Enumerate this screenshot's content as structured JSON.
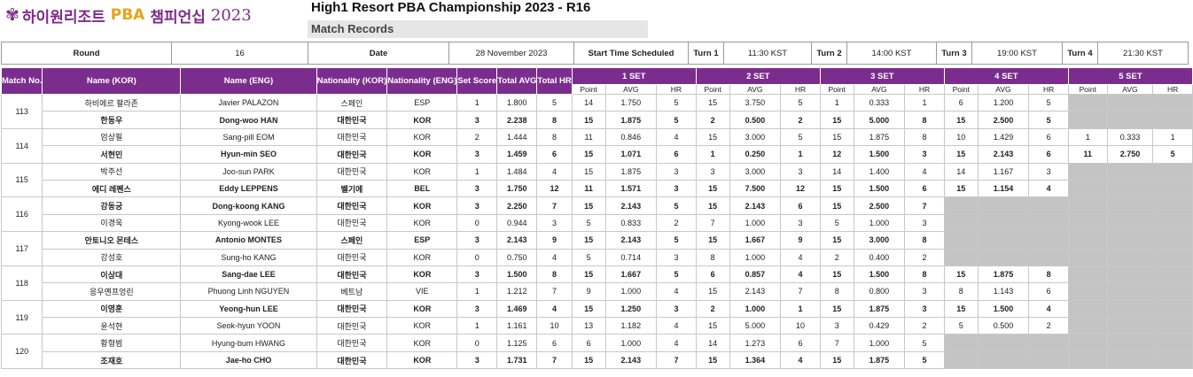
{
  "logo": {
    "symbol": "✾",
    "korean_a": "하이원리조트",
    "pba": "PBA",
    "korean_b": "챔피언십",
    "year": "2023"
  },
  "title": "High1 Resort PBA Championship 2023 - R16",
  "subtitle": "Match Records",
  "info": {
    "round_label": "Round",
    "round": "16",
    "date_label": "Date",
    "date": "28 November 2023",
    "start_label": "Start Time Scheduled",
    "turns": [
      {
        "label": "Turn 1",
        "time": "11:30 KST"
      },
      {
        "label": "Turn 2",
        "time": "14:00 KST"
      },
      {
        "label": "Turn 3",
        "time": "19:00 KST"
      },
      {
        "label": "Turn 4",
        "time": "21:30 KST"
      }
    ]
  },
  "headers": {
    "match": "Match No.",
    "name_kor": "Name (KOR)",
    "name_eng": "Name (ENG)",
    "nat_kor": "Nationality (KOR)",
    "nat_eng": "Nationality (ENG)",
    "set_score": "Set Score",
    "total_avg": "Total AVG",
    "total_hr": "Total HR",
    "sets": [
      "1 SET",
      "2 SET",
      "3 SET",
      "4 SET",
      "5 SET"
    ],
    "point": "Point",
    "avg": "AVG",
    "hr": "HR"
  },
  "colors": {
    "header_bg": "#7b2d8e",
    "empty_set": "#c4c4c4"
  },
  "matches": [
    {
      "no": "113",
      "players": [
        {
          "bold": false,
          "kor": "하비에르 팔라존",
          "eng": "Javier PALAZON",
          "nat_kor": "스페인",
          "nat_eng": "ESP",
          "score": "1",
          "avg": "1.800",
          "hr": "5",
          "sets": [
            [
              "14",
              "1.750",
              "5"
            ],
            [
              "15",
              "3.750",
              "5"
            ],
            [
              "1",
              "0.333",
              "1"
            ],
            [
              "6",
              "1.200",
              "5"
            ],
            null
          ]
        },
        {
          "bold": true,
          "kor": "한동우",
          "eng": "Dong-woo HAN",
          "nat_kor": "대한민국",
          "nat_eng": "KOR",
          "score": "3",
          "avg": "2.238",
          "hr": "8",
          "sets": [
            [
              "15",
              "1.875",
              "5"
            ],
            [
              "2",
              "0.500",
              "2"
            ],
            [
              "15",
              "5.000",
              "8"
            ],
            [
              "15",
              "2.500",
              "5"
            ],
            null
          ]
        }
      ]
    },
    {
      "no": "114",
      "players": [
        {
          "bold": false,
          "kor": "엄상필",
          "eng": "Sang-pill EOM",
          "nat_kor": "대한민국",
          "nat_eng": "KOR",
          "score": "2",
          "avg": "1.444",
          "hr": "8",
          "sets": [
            [
              "11",
              "0.846",
              "4"
            ],
            [
              "15",
              "3.000",
              "5"
            ],
            [
              "15",
              "1.875",
              "8"
            ],
            [
              "10",
              "1.429",
              "6"
            ],
            [
              "1",
              "0.333",
              "1"
            ]
          ]
        },
        {
          "bold": true,
          "kor": "서현민",
          "eng": "Hyun-min SEO",
          "nat_kor": "대한민국",
          "nat_eng": "KOR",
          "score": "3",
          "avg": "1.459",
          "hr": "6",
          "sets": [
            [
              "15",
              "1.071",
              "6"
            ],
            [
              "1",
              "0.250",
              "1"
            ],
            [
              "12",
              "1.500",
              "3"
            ],
            [
              "15",
              "2.143",
              "6"
            ],
            [
              "11",
              "2.750",
              "5"
            ]
          ]
        }
      ]
    },
    {
      "no": "115",
      "players": [
        {
          "bold": false,
          "kor": "박주선",
          "eng": "Joo-sun PARK",
          "nat_kor": "대한민국",
          "nat_eng": "KOR",
          "score": "1",
          "avg": "1.484",
          "hr": "4",
          "sets": [
            [
              "15",
              "1.875",
              "3"
            ],
            [
              "3",
              "3.000",
              "3"
            ],
            [
              "14",
              "1.400",
              "4"
            ],
            [
              "14",
              "1.167",
              "3"
            ],
            null
          ]
        },
        {
          "bold": true,
          "kor": "에디 레펜스",
          "eng": "Eddy LEPPENS",
          "nat_kor": "벨기에",
          "nat_eng": "BEL",
          "score": "3",
          "avg": "1.750",
          "hr": "12",
          "sets": [
            [
              "11",
              "1.571",
              "3"
            ],
            [
              "15",
              "7.500",
              "12"
            ],
            [
              "15",
              "1.500",
              "6"
            ],
            [
              "15",
              "1.154",
              "4"
            ],
            null
          ]
        }
      ]
    },
    {
      "no": "116",
      "players": [
        {
          "bold": true,
          "kor": "강동궁",
          "eng": "Dong-koong KANG",
          "nat_kor": "대한민국",
          "nat_eng": "KOR",
          "score": "3",
          "avg": "2.250",
          "hr": "7",
          "sets": [
            [
              "15",
              "2.143",
              "5"
            ],
            [
              "15",
              "2.143",
              "6"
            ],
            [
              "15",
              "2.500",
              "7"
            ],
            null,
            null
          ]
        },
        {
          "bold": false,
          "kor": "이경욱",
          "eng": "Kyong-wook LEE",
          "nat_kor": "대한민국",
          "nat_eng": "KOR",
          "score": "0",
          "avg": "0.944",
          "hr": "3",
          "sets": [
            [
              "5",
              "0.833",
              "2"
            ],
            [
              "7",
              "1.000",
              "3"
            ],
            [
              "5",
              "1.000",
              "3"
            ],
            null,
            null
          ]
        }
      ]
    },
    {
      "no": "117",
      "players": [
        {
          "bold": true,
          "kor": "안토니오 몬테스",
          "eng": "Antonio MONTES",
          "nat_kor": "스페인",
          "nat_eng": "ESP",
          "score": "3",
          "avg": "2.143",
          "hr": "9",
          "sets": [
            [
              "15",
              "2.143",
              "5"
            ],
            [
              "15",
              "1.667",
              "9"
            ],
            [
              "15",
              "3.000",
              "8"
            ],
            null,
            null
          ]
        },
        {
          "bold": false,
          "kor": "강성호",
          "eng": "Sung-ho KANG",
          "nat_kor": "대한민국",
          "nat_eng": "KOR",
          "score": "0",
          "avg": "0.750",
          "hr": "4",
          "sets": [
            [
              "5",
              "0.714",
              "3"
            ],
            [
              "8",
              "1.000",
              "4"
            ],
            [
              "2",
              "0.400",
              "2"
            ],
            null,
            null
          ]
        }
      ]
    },
    {
      "no": "118",
      "players": [
        {
          "bold": true,
          "kor": "이상대",
          "eng": "Sang-dae LEE",
          "nat_kor": "대한민국",
          "nat_eng": "KOR",
          "score": "3",
          "avg": "1.500",
          "hr": "8",
          "sets": [
            [
              "15",
              "1.667",
              "5"
            ],
            [
              "6",
              "0.857",
              "4"
            ],
            [
              "15",
              "1.500",
              "8"
            ],
            [
              "15",
              "1.875",
              "8"
            ],
            null
          ]
        },
        {
          "bold": false,
          "kor": "응우옌프엉린",
          "eng": "Phuong Linh NGUYEN",
          "nat_kor": "베트남",
          "nat_eng": "VIE",
          "score": "1",
          "avg": "1.212",
          "hr": "7",
          "sets": [
            [
              "9",
              "1.000",
              "4"
            ],
            [
              "15",
              "2.143",
              "7"
            ],
            [
              "8",
              "0.800",
              "3"
            ],
            [
              "8",
              "1.143",
              "6"
            ],
            null
          ]
        }
      ]
    },
    {
      "no": "119",
      "players": [
        {
          "bold": true,
          "kor": "이영훈",
          "eng": "Yeong-hun LEE",
          "nat_kor": "대한민국",
          "nat_eng": "KOR",
          "score": "3",
          "avg": "1.469",
          "hr": "4",
          "sets": [
            [
              "15",
              "1.250",
              "3"
            ],
            [
              "2",
              "1.000",
              "1"
            ],
            [
              "15",
              "1.875",
              "3"
            ],
            [
              "15",
              "1.500",
              "4"
            ],
            null
          ]
        },
        {
          "bold": false,
          "kor": "윤석현",
          "eng": "Seok-hyun YOON",
          "nat_kor": "대한민국",
          "nat_eng": "KOR",
          "score": "1",
          "avg": "1.161",
          "hr": "10",
          "sets": [
            [
              "13",
              "1.182",
              "4"
            ],
            [
              "15",
              "5.000",
              "10"
            ],
            [
              "3",
              "0.429",
              "2"
            ],
            [
              "5",
              "0.500",
              "2"
            ],
            null
          ]
        }
      ]
    },
    {
      "no": "120",
      "players": [
        {
          "bold": false,
          "kor": "황형범",
          "eng": "Hyung-bum HWANG",
          "nat_kor": "대한민국",
          "nat_eng": "KOR",
          "score": "0",
          "avg": "1.125",
          "hr": "6",
          "sets": [
            [
              "6",
              "1.000",
              "4"
            ],
            [
              "14",
              "1.273",
              "6"
            ],
            [
              "7",
              "1.000",
              "5"
            ],
            null,
            null
          ]
        },
        {
          "bold": true,
          "kor": "조재호",
          "eng": "Jae-ho CHO",
          "nat_kor": "대한민국",
          "nat_eng": "KOR",
          "score": "3",
          "avg": "1.731",
          "hr": "7",
          "sets": [
            [
              "15",
              "2.143",
              "7"
            ],
            [
              "15",
              "1.364",
              "4"
            ],
            [
              "15",
              "1.875",
              "5"
            ],
            null,
            null
          ]
        }
      ]
    }
  ]
}
